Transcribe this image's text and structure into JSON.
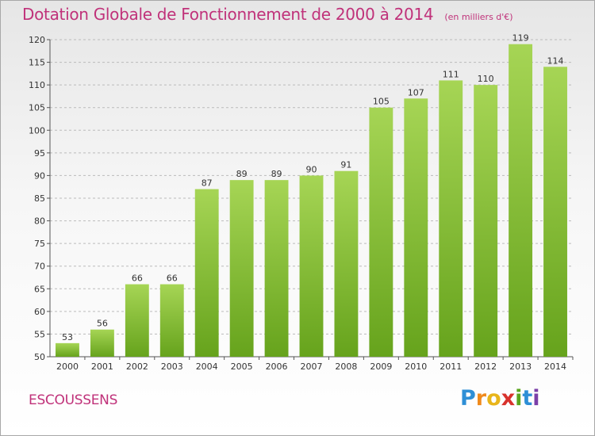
{
  "header": {
    "title": "Dotation Globale de Fonctionnement de 2000 à 2014",
    "unit": "(en milliers d'€)"
  },
  "footer": {
    "commune": "ESCOUSSENS",
    "logo_letters": [
      "P",
      "r",
      "o",
      "x",
      "i",
      "t",
      "i"
    ],
    "logo_colors": [
      "#2e8fd6",
      "#f08a1c",
      "#e8b51a",
      "#d8322c",
      "#5aa61e",
      "#2e8fd6",
      "#7b3fa8"
    ]
  },
  "colors": {
    "bar_light": "#a6d555",
    "bar_dark": "#66a31c",
    "grid": "#bbbbbb",
    "title": "#c0327a"
  },
  "chart_data": {
    "type": "bar",
    "title": "Dotation Globale de Fonctionnement de 2000 à 2014",
    "subtitle": "(en milliers d'€)",
    "xlabel": "",
    "ylabel": "",
    "categories": [
      "2000",
      "2001",
      "2002",
      "2003",
      "2004",
      "2005",
      "2006",
      "2007",
      "2008",
      "2009",
      "2010",
      "2011",
      "2012",
      "2013",
      "2014"
    ],
    "values": [
      53,
      56,
      66,
      66,
      87,
      89,
      89,
      90,
      91,
      105,
      107,
      111,
      110,
      119,
      114
    ],
    "ylim": [
      50,
      120
    ],
    "yticks": [
      50,
      55,
      60,
      65,
      70,
      75,
      80,
      85,
      90,
      95,
      100,
      105,
      110,
      115,
      120
    ],
    "grid": true,
    "data_labels": true
  }
}
